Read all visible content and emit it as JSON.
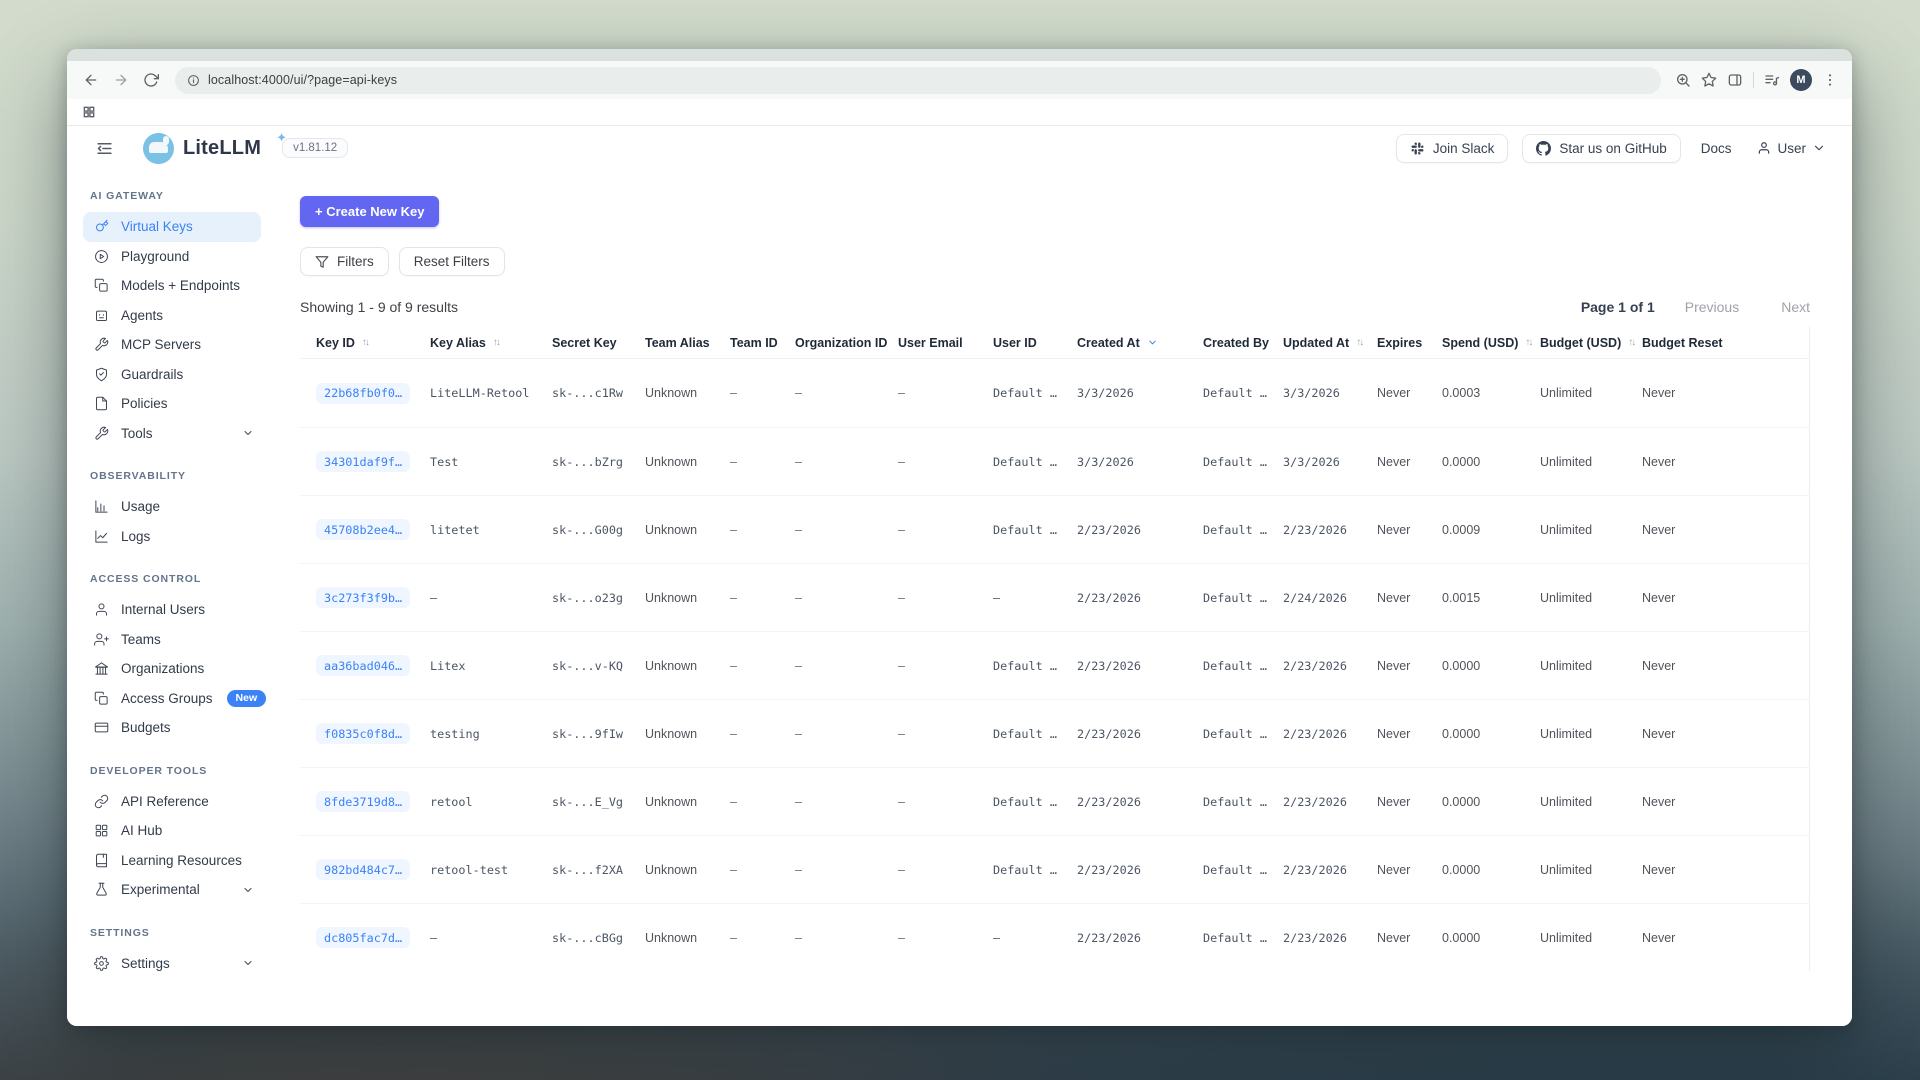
{
  "browser": {
    "url": "localhost:4000/ui/?page=api-keys",
    "avatar_letter": "M"
  },
  "header": {
    "brand": "LiteLLM",
    "version": "v1.81.12",
    "join_slack": "Join Slack",
    "star_github": "Star us on GitHub",
    "docs": "Docs",
    "user": "User"
  },
  "colors": {
    "accent": "#6366f1",
    "link_blue": "#3b82f6",
    "selected_bg": "#e7f1fc",
    "badge_blue": "#3b82f6"
  },
  "sidebar": {
    "sections": [
      {
        "label": "AI GATEWAY",
        "items": [
          {
            "label": "Virtual Keys",
            "icon": "key-icon",
            "active": true
          },
          {
            "label": "Playground",
            "icon": "play-circle-icon"
          },
          {
            "label": "Models + Endpoints",
            "icon": "layers-icon"
          },
          {
            "label": "Agents",
            "icon": "robot-icon"
          },
          {
            "label": "MCP Servers",
            "icon": "wrench-icon"
          },
          {
            "label": "Guardrails",
            "icon": "shield-check-icon"
          },
          {
            "label": "Policies",
            "icon": "document-icon"
          },
          {
            "label": "Tools",
            "icon": "wrench-icon",
            "chevron": true
          }
        ]
      },
      {
        "label": "OBSERVABILITY",
        "items": [
          {
            "label": "Usage",
            "icon": "bar-chart-icon"
          },
          {
            "label": "Logs",
            "icon": "line-chart-icon"
          }
        ]
      },
      {
        "label": "ACCESS CONTROL",
        "items": [
          {
            "label": "Internal Users",
            "icon": "user-icon"
          },
          {
            "label": "Teams",
            "icon": "users-icon"
          },
          {
            "label": "Organizations",
            "icon": "bank-icon"
          },
          {
            "label": "Access Groups",
            "icon": "copy-icon",
            "badge": "New"
          },
          {
            "label": "Budgets",
            "icon": "credit-card-icon"
          }
        ]
      },
      {
        "label": "DEVELOPER TOOLS",
        "items": [
          {
            "label": "API Reference",
            "icon": "link-icon"
          },
          {
            "label": "AI Hub",
            "icon": "grid-icon"
          },
          {
            "label": "Learning Resources",
            "icon": "book-icon"
          },
          {
            "label": "Experimental",
            "icon": "flask-icon",
            "chevron": true
          }
        ]
      },
      {
        "label": "SETTINGS",
        "items": [
          {
            "label": "Settings",
            "icon": "gear-icon",
            "chevron": true
          }
        ]
      }
    ]
  },
  "toolbar": {
    "create_button": "+ Create New Key",
    "filters": "Filters",
    "reset_filters": "Reset Filters"
  },
  "results": {
    "summary": "Showing 1 - 9 of 9 results",
    "page": "Page 1 of 1",
    "previous": "Previous",
    "next": "Next"
  },
  "table": {
    "columns": [
      {
        "label": "Key ID",
        "sort": "updown"
      },
      {
        "label": "Key Alias",
        "sort": "updown"
      },
      {
        "label": "Secret Key"
      },
      {
        "label": "Team Alias"
      },
      {
        "label": "Team ID"
      },
      {
        "label": "Organization ID"
      },
      {
        "label": "User Email"
      },
      {
        "label": "User ID"
      },
      {
        "label": "Created At",
        "sort": "down-active"
      },
      {
        "label": "Created By"
      },
      {
        "label": "Updated At",
        "sort": "updown"
      },
      {
        "label": "Expires"
      },
      {
        "label": "Spend (USD)",
        "sort": "updown"
      },
      {
        "label": "Budget (USD)",
        "sort": "updown"
      },
      {
        "label": "Budget Reset"
      }
    ],
    "rows": [
      [
        "22b68fb0f0…",
        "LiteLLM-Retool",
        "sk-...c1Rw",
        "Unknown",
        "–",
        "–",
        "–",
        "Default …",
        "3/3/2026",
        "Default …",
        "3/3/2026",
        "Never",
        "0.0003",
        "Unlimited",
        "Never"
      ],
      [
        "34301daf9f…",
        "Test",
        "sk-...bZrg",
        "Unknown",
        "–",
        "–",
        "–",
        "Default …",
        "3/3/2026",
        "Default …",
        "3/3/2026",
        "Never",
        "0.0000",
        "Unlimited",
        "Never"
      ],
      [
        "45708b2ee4…",
        "litetet",
        "sk-...G00g",
        "Unknown",
        "–",
        "–",
        "–",
        "Default …",
        "2/23/2026",
        "Default …",
        "2/23/2026",
        "Never",
        "0.0009",
        "Unlimited",
        "Never"
      ],
      [
        "3c273f3f9b…",
        "–",
        "sk-...o23g",
        "Unknown",
        "–",
        "–",
        "–",
        "–",
        "2/23/2026",
        "Default …",
        "2/24/2026",
        "Never",
        "0.0015",
        "Unlimited",
        "Never"
      ],
      [
        "aa36bad046…",
        "Litex",
        "sk-...v-KQ",
        "Unknown",
        "–",
        "–",
        "–",
        "Default …",
        "2/23/2026",
        "Default …",
        "2/23/2026",
        "Never",
        "0.0000",
        "Unlimited",
        "Never"
      ],
      [
        "f0835c0f8d…",
        "testing",
        "sk-...9fIw",
        "Unknown",
        "–",
        "–",
        "–",
        "Default …",
        "2/23/2026",
        "Default …",
        "2/23/2026",
        "Never",
        "0.0000",
        "Unlimited",
        "Never"
      ],
      [
        "8fde3719d8…",
        "retool",
        "sk-...E_Vg",
        "Unknown",
        "–",
        "–",
        "–",
        "Default …",
        "2/23/2026",
        "Default …",
        "2/23/2026",
        "Never",
        "0.0000",
        "Unlimited",
        "Never"
      ],
      [
        "982bd484c7…",
        "retool-test",
        "sk-...f2XA",
        "Unknown",
        "–",
        "–",
        "–",
        "Default …",
        "2/23/2026",
        "Default …",
        "2/23/2026",
        "Never",
        "0.0000",
        "Unlimited",
        "Never"
      ],
      [
        "dc805fac7d…",
        "–",
        "sk-...cBGg",
        "Unknown",
        "–",
        "–",
        "–",
        "–",
        "2/23/2026",
        "Default …",
        "2/23/2026",
        "Never",
        "0.0000",
        "Unlimited",
        "Never"
      ]
    ]
  }
}
